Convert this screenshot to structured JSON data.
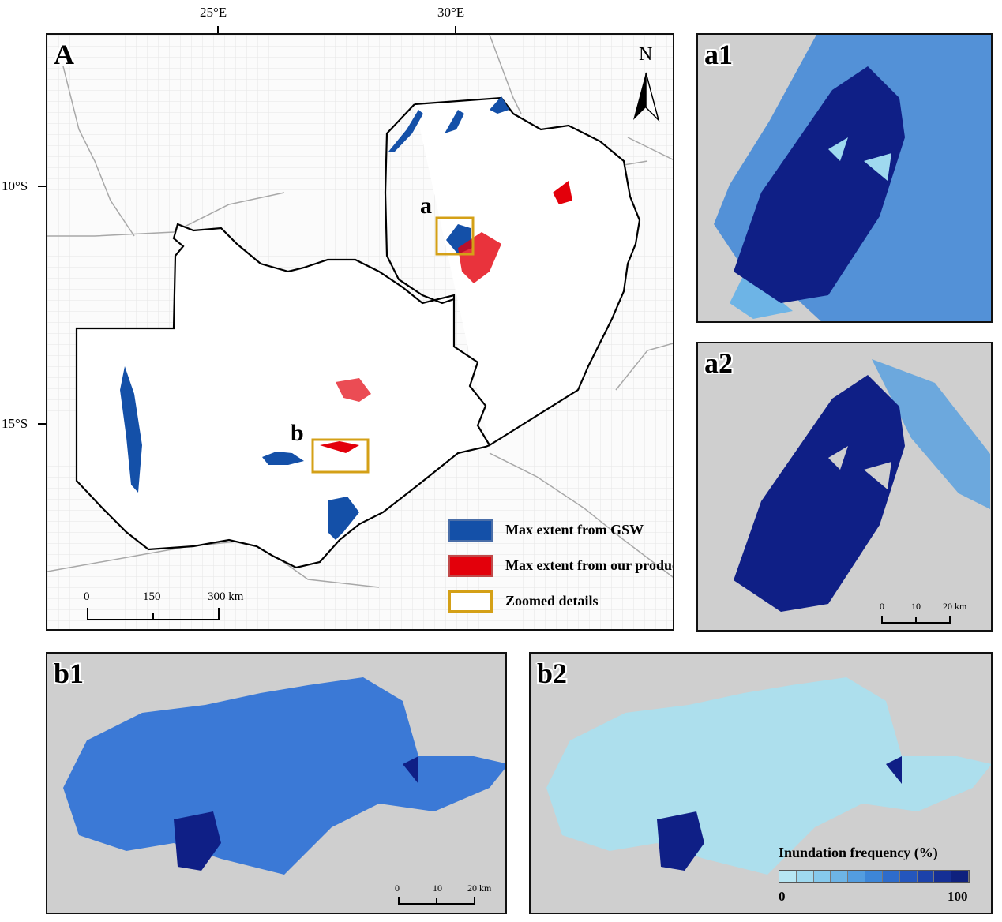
{
  "main_panel": {
    "letter": "A",
    "lon_labels": [
      "25°E",
      "30°E"
    ],
    "lat_labels": [
      "10°S",
      "15°S"
    ],
    "north_label": "N",
    "zoom_labels": {
      "a": "a",
      "b": "b"
    },
    "legend": [
      {
        "label": "Max extent from GSW",
        "color": "#1450a8"
      },
      {
        "label": "Max extent from our product",
        "color": "#e3000b"
      },
      {
        "label": "Zoomed details",
        "color": "#d4a017"
      }
    ],
    "scalebar": {
      "ticks": [
        "0",
        "150",
        "300 km"
      ]
    }
  },
  "panel_a1": {
    "letter": "a1"
  },
  "panel_a2": {
    "letter": "a2",
    "scalebar": {
      "ticks": [
        "0",
        "10",
        "20 km"
      ]
    }
  },
  "panel_b1": {
    "letter": "b1",
    "scalebar": {
      "ticks": [
        "0",
        "10",
        "20 km"
      ]
    }
  },
  "panel_b2": {
    "letter": "b2",
    "colorbar": {
      "title": "Inundation frequency (%)",
      "min_label": "0",
      "max_label": "100",
      "colors": [
        "#b7e6f3",
        "#9fd9ef",
        "#86c9ec",
        "#6db4e6",
        "#539de0",
        "#3d86d8",
        "#2e6ccb",
        "#2456bd",
        "#1c42aa",
        "#152f95",
        "#0f217e"
      ]
    }
  },
  "colors": {
    "background_grey": "#cfcfcf",
    "water_dark": "#0d1f8a",
    "water_mid": "#2a6fd6",
    "water_light": "#9fd9ef",
    "gsw_blue": "#1450a8",
    "product_red": "#e3000b",
    "zoom_gold": "#d4a017"
  }
}
